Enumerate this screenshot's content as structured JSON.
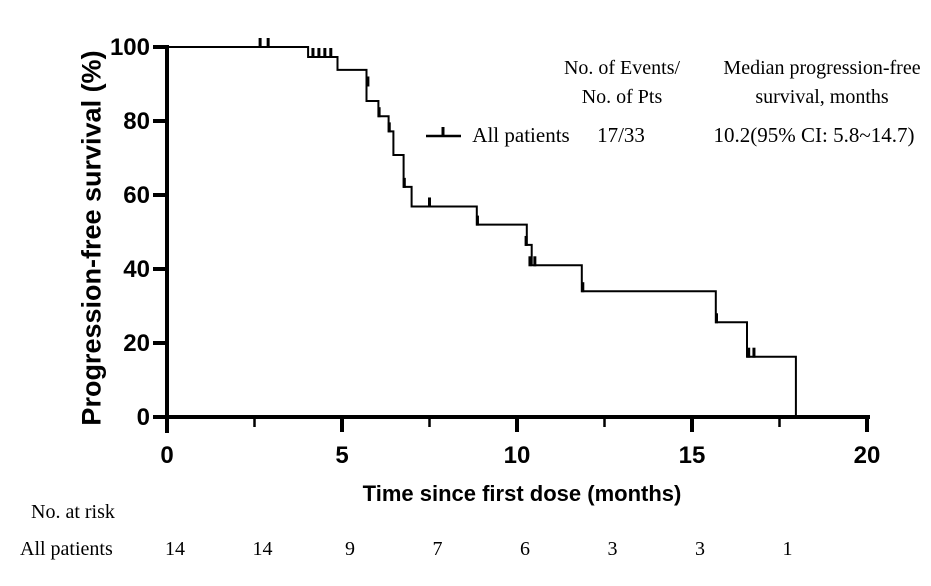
{
  "chart_data": {
    "type": "line",
    "subtype": "kaplan-meier-step",
    "title": "",
    "xlabel": "Time since first dose (months)",
    "ylabel": "Progression-free survival (%)",
    "xlim": [
      0,
      20
    ],
    "ylim": [
      0,
      100
    ],
    "x_major_ticks": [
      0,
      5,
      10,
      15,
      20
    ],
    "x_minor_ticks": [
      2.5,
      7.5,
      12.5,
      17.5
    ],
    "y_ticks": [
      0,
      20,
      40,
      60,
      80,
      100
    ],
    "grid": false,
    "line_color": "#000000",
    "annotation_headers": {
      "events_line1": "No. of Events/",
      "events_line2": "No. of Pts",
      "median_line1": "Median progression-free",
      "median_line2": "survival, months"
    },
    "series": [
      {
        "name": "All patients",
        "color": "#000000",
        "events_over_patients": "17/33",
        "median_label": "10.2(95% CI: 5.8~14.7)",
        "median_months": 10.2,
        "ci_low": 5.8,
        "ci_high": 14.7,
        "steps": [
          [
            0,
            100
          ],
          [
            4.03,
            100
          ],
          [
            4.03,
            97.3
          ],
          [
            4.87,
            97.3
          ],
          [
            4.87,
            93.8
          ],
          [
            5.7,
            93.8
          ],
          [
            5.7,
            85.4
          ],
          [
            6.04,
            85.4
          ],
          [
            6.04,
            81.3
          ],
          [
            6.33,
            81.3
          ],
          [
            6.33,
            77.2
          ],
          [
            6.47,
            77.2
          ],
          [
            6.47,
            70.8
          ],
          [
            6.76,
            70.8
          ],
          [
            6.76,
            62.2
          ],
          [
            6.99,
            62.2
          ],
          [
            6.99,
            56.9
          ],
          [
            8.85,
            56.9
          ],
          [
            8.85,
            52.0
          ],
          [
            10.28,
            52.0
          ],
          [
            10.28,
            46.5
          ],
          [
            10.42,
            46.5
          ],
          [
            10.42,
            41.0
          ],
          [
            11.85,
            41.0
          ],
          [
            11.85,
            34.0
          ],
          [
            15.68,
            34.0
          ],
          [
            15.68,
            25.6
          ],
          [
            16.57,
            25.6
          ],
          [
            16.57,
            16.3
          ],
          [
            17.97,
            16.3
          ],
          [
            17.97,
            0
          ]
        ],
        "censor_marks": [
          [
            2.66,
            100
          ],
          [
            2.89,
            100
          ],
          [
            4.17,
            97.3
          ],
          [
            4.34,
            97.3
          ],
          [
            4.51,
            97.3
          ],
          [
            4.68,
            97.3
          ],
          [
            5.74,
            89.6
          ],
          [
            6.06,
            81.3
          ],
          [
            6.35,
            77.2
          ],
          [
            6.78,
            62.2
          ],
          [
            7.5,
            56.9
          ],
          [
            8.87,
            52.0
          ],
          [
            10.26,
            46.5
          ],
          [
            10.37,
            41.0
          ],
          [
            10.51,
            41.0
          ],
          [
            11.88,
            34.0
          ],
          [
            15.7,
            25.6
          ],
          [
            16.62,
            16.3
          ],
          [
            16.77,
            16.3
          ]
        ]
      }
    ],
    "at_risk": {
      "label": "No. at risk",
      "rows": [
        {
          "name": "All patients",
          "times": [
            0,
            2.5,
            5,
            7.5,
            10,
            12.5,
            15,
            17.5
          ],
          "counts": [
            14,
            14,
            9,
            7,
            6,
            3,
            3,
            1
          ]
        }
      ]
    }
  }
}
